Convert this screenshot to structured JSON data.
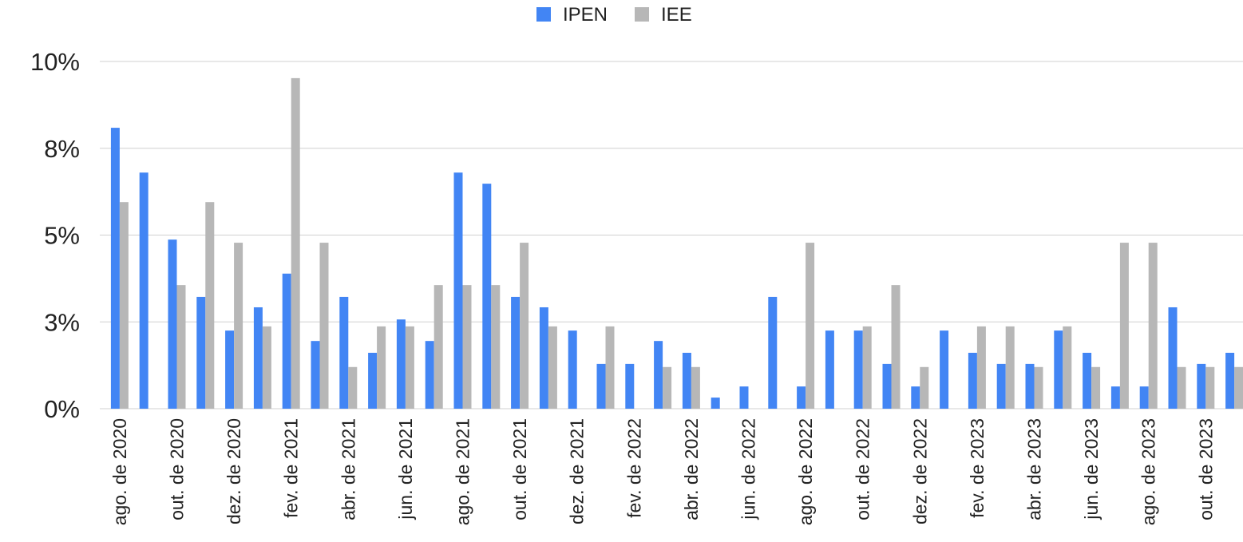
{
  "chart_data": {
    "type": "bar",
    "categories": [
      "ago. de 2020",
      null,
      "out. de 2020",
      null,
      "dez. de 2020",
      null,
      "fev. de 2021",
      null,
      "abr. de 2021",
      null,
      "jun. de 2021",
      null,
      "ago. de 2021",
      null,
      "out. de 2021",
      null,
      "dez. de 2021",
      null,
      "fev. de 2022",
      null,
      "abr. de 2022",
      null,
      "jun. de 2022",
      null,
      "ago. de 2022",
      null,
      "out. de 2022",
      null,
      "dez. de 2022",
      null,
      "fev. de 2023",
      null,
      "abr. de 2023",
      null,
      "jun. de 2023",
      null,
      "ago. de 2023",
      null,
      "out. de 2023",
      null
    ],
    "series": [
      {
        "name": "IPEN",
        "color": "#4285f4",
        "values": [
          8.09,
          6.8,
          4.87,
          3.22,
          2.25,
          2.92,
          3.89,
          1.95,
          3.22,
          1.61,
          2.57,
          1.95,
          6.8,
          6.48,
          3.22,
          2.92,
          2.25,
          1.29,
          1.29,
          1.95,
          1.61,
          0.32,
          0.64,
          3.22,
          0.64,
          2.25,
          2.25,
          1.29,
          0.64,
          2.25,
          1.61,
          1.29,
          1.29,
          2.25,
          1.61,
          0.64,
          0.64,
          2.92,
          1.29,
          1.61
        ]
      },
      {
        "name": "IEE",
        "color": "#b7b7b7",
        "values": [
          5.95,
          null,
          3.56,
          5.95,
          4.78,
          2.37,
          9.52,
          4.78,
          1.2,
          2.37,
          2.37,
          3.56,
          3.56,
          3.56,
          4.78,
          2.37,
          null,
          2.37,
          null,
          1.2,
          1.2,
          null,
          null,
          null,
          4.78,
          null,
          2.37,
          3.56,
          1.2,
          null,
          2.37,
          2.37,
          1.2,
          2.37,
          1.2,
          4.78,
          4.78,
          1.2,
          1.2,
          1.2
        ]
      }
    ],
    "ylim": [
      0,
      10
    ],
    "yticks": [
      {
        "value": 0,
        "label": "0%"
      },
      {
        "value": 2.5,
        "label": "3%"
      },
      {
        "value": 5,
        "label": "5%"
      },
      {
        "value": 7.5,
        "label": "8%"
      },
      {
        "value": 10,
        "label": "10%"
      }
    ],
    "grid": true,
    "legend": "top"
  }
}
